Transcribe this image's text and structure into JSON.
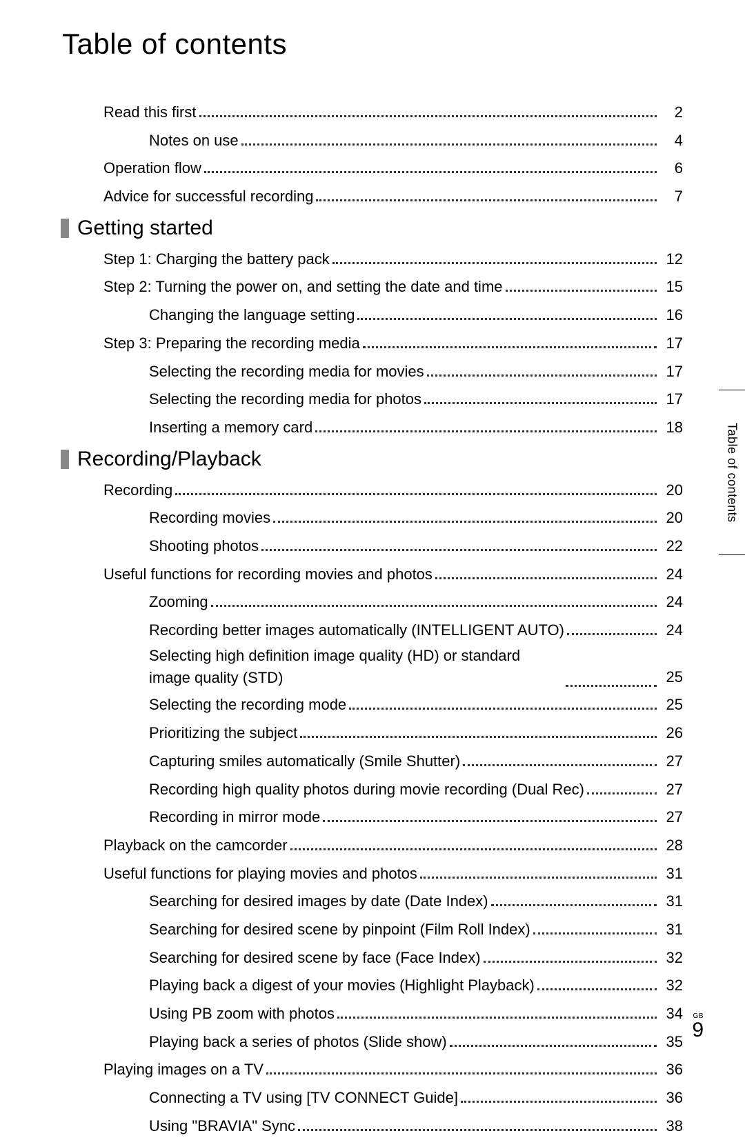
{
  "title": "Table of contents",
  "side_tab": "Table of contents",
  "footer": {
    "region": "GB",
    "page": "9"
  },
  "colors": {
    "section_marker": "#888888",
    "text": "#000000",
    "background": "#ffffff",
    "dot_leader": "#333333"
  },
  "typography": {
    "title_fontsize_pt": 32,
    "section_fontsize_pt": 22,
    "entry_fontsize_pt": 16,
    "font_family": "Segoe UI / Helvetica-like sans-serif"
  },
  "intro": [
    {
      "label": "Read this first",
      "page": "2",
      "indent": 0
    },
    {
      "label": "Notes on use",
      "page": "4",
      "indent": 1
    },
    {
      "label": "Operation flow",
      "page": "6",
      "indent": 0
    },
    {
      "label": "Advice for successful recording",
      "page": "7",
      "indent": 0
    }
  ],
  "sections": [
    {
      "title": "Getting started",
      "entries": [
        {
          "label": "Step 1: Charging the battery pack",
          "page": "12",
          "indent": 0
        },
        {
          "label": "Step 2: Turning the power on, and setting the date and time",
          "page": "15",
          "indent": 0
        },
        {
          "label": "Changing the language setting",
          "page": "16",
          "indent": 1
        },
        {
          "label": "Step 3: Preparing the recording media",
          "page": "17",
          "indent": 0
        },
        {
          "label": "Selecting the recording media for movies",
          "page": "17",
          "indent": 1
        },
        {
          "label": "Selecting the recording media for photos",
          "page": "17",
          "indent": 1
        },
        {
          "label": "Inserting a memory card",
          "page": "18",
          "indent": 1
        }
      ]
    },
    {
      "title": "Recording/Playback",
      "entries": [
        {
          "label": "Recording",
          "page": "20",
          "indent": 0
        },
        {
          "label": "Recording movies",
          "page": "20",
          "indent": 1
        },
        {
          "label": "Shooting photos",
          "page": "22",
          "indent": 1
        },
        {
          "label": "Useful functions for recording movies and photos",
          "page": "24",
          "indent": 0
        },
        {
          "label": "Zooming",
          "page": "24",
          "indent": 1
        },
        {
          "label": "Recording better images automatically (INTELLIGENT AUTO)",
          "page": "24",
          "indent": 1
        },
        {
          "label": "Selecting high definition image quality (HD) or standard image quality (STD)",
          "page": "25",
          "indent": 1,
          "multiline": true
        },
        {
          "label": "Selecting the recording mode",
          "page": "25",
          "indent": 1
        },
        {
          "label": "Prioritizing the subject",
          "page": "26",
          "indent": 1
        },
        {
          "label": "Capturing smiles automatically (Smile Shutter)",
          "page": "27",
          "indent": 1
        },
        {
          "label": "Recording high quality photos during movie recording (Dual Rec)",
          "page": "27",
          "indent": 1
        },
        {
          "label": "Recording in mirror mode",
          "page": "27",
          "indent": 1
        },
        {
          "label": "Playback on the camcorder",
          "page": "28",
          "indent": 0
        },
        {
          "label": "Useful functions for playing movies and photos",
          "page": "31",
          "indent": 0
        },
        {
          "label": "Searching for desired images by date (Date Index)",
          "page": "31",
          "indent": 1
        },
        {
          "label": "Searching for desired scene by pinpoint (Film Roll Index)",
          "page": "31",
          "indent": 1
        },
        {
          "label": "Searching for desired scene by face (Face Index)",
          "page": "32",
          "indent": 1
        },
        {
          "label": "Playing back a digest of your movies (Highlight Playback)",
          "page": "32",
          "indent": 1
        },
        {
          "label": "Using PB zoom with photos",
          "page": "34",
          "indent": 1
        },
        {
          "label": "Playing back a series of photos (Slide show)",
          "page": "35",
          "indent": 1
        },
        {
          "label": "Playing images on a TV",
          "page": "36",
          "indent": 0
        },
        {
          "label": "Connecting a TV using [TV CONNECT Guide]",
          "page": "36",
          "indent": 1
        },
        {
          "label": "Using \"BRAVIA\" Sync",
          "page": "38",
          "indent": 1
        }
      ]
    }
  ]
}
